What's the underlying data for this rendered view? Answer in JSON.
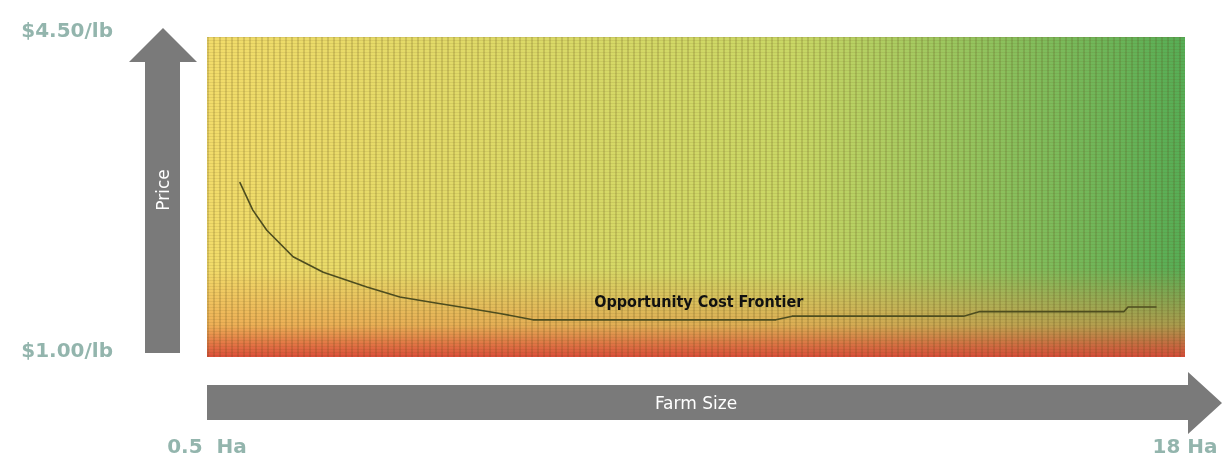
{
  "chart_data": {
    "type": "line",
    "xlabel": "Farm Size",
    "ylabel": "Price",
    "x": [
      1.09,
      1.32,
      1.57,
      2.04,
      2.58,
      3.36,
      3.95,
      4.54,
      5.15,
      5.74,
      6.33,
      10.68,
      10.97,
      14.04,
      14.33,
      16.91,
      16.98,
      17.48
    ],
    "series": [
      {
        "color": "#4d4d1f",
        "values": [
          2.83,
          2.53,
          2.31,
          2.02,
          1.85,
          1.69,
          1.58,
          1.52,
          1.46,
          1.4,
          1.33,
          1.33,
          1.37,
          1.37,
          1.42,
          1.42,
          1.47,
          1.47
        ]
      }
    ],
    "annotations": [
      {
        "text": "Opportunity Cost Frontier",
        "x": 9.3,
        "y": 1.33
      }
    ],
    "xlim": [
      0.5,
      18
    ],
    "xticks": [
      {
        "value": 0.5,
        "label": "0.5  Ha"
      },
      {
        "value": 18,
        "label": "18 Ha"
      }
    ],
    "ylim": [
      1,
      4.5
    ],
    "yticks": [
      {
        "value": 1,
        "label": "$1.00/lb"
      },
      {
        "value": 4.5,
        "label": "$4.50/lb"
      }
    ],
    "grid": false,
    "marker": "none",
    "line_style": "solid"
  }
}
